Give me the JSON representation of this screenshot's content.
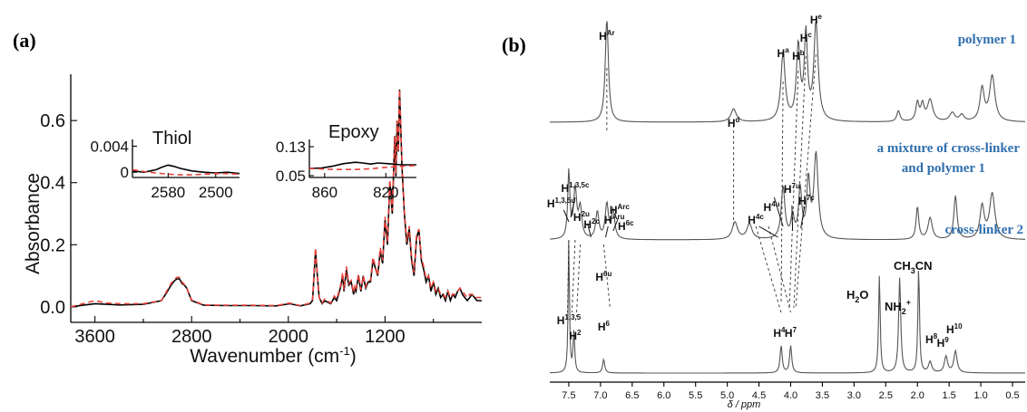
{
  "panels": [
    {
      "letter": "(a)"
    },
    {
      "letter": "(b)"
    }
  ],
  "chart_data": [
    {
      "type": "line",
      "xlabel": "Wavenumber (cm",
      "xlabel_sup": "-1",
      "xlabel_end": ")",
      "ylabel": "Absorbance",
      "xlim": [
        3800,
        400
      ],
      "ylim": [
        -0.05,
        0.72
      ],
      "x_ticks": [
        3600,
        2800,
        2000,
        1200
      ],
      "x_tick_labels": [
        "3600",
        "2800",
        "2000",
        "1200"
      ],
      "y_ticks": [
        0.0,
        0.2,
        0.4,
        0.6
      ],
      "y_tick_labels": [
        "0.0",
        "0.2",
        "0.4",
        "0.6"
      ],
      "series": [
        {
          "color": "#000000",
          "style": "solid",
          "x": [
            3800,
            3700,
            3600,
            3500,
            3400,
            3200,
            3050,
            3000,
            2970,
            2940,
            2920,
            2900,
            2880,
            2860,
            2840,
            2800,
            2700,
            2500,
            2300,
            2100,
            1990,
            1900,
            1820,
            1800,
            1775,
            1760,
            1745,
            1720,
            1700,
            1650,
            1620,
            1600,
            1570,
            1550,
            1540,
            1520,
            1500,
            1480,
            1460,
            1450,
            1440,
            1420,
            1400,
            1380,
            1360,
            1340,
            1320,
            1300,
            1260,
            1240,
            1220,
            1200,
            1180,
            1160,
            1140,
            1120,
            1110,
            1100,
            1090,
            1080,
            1060,
            1040,
            1020,
            1000,
            980,
            960,
            940,
            920,
            900,
            880,
            860,
            840,
            820,
            800,
            780,
            760,
            740,
            720,
            700,
            680,
            660,
            640,
            620,
            600,
            580,
            560,
            540,
            520,
            500,
            480,
            460,
            440,
            420,
            400
          ],
          "y": [
            0.0,
            0.005,
            0.01,
            0.008,
            0.006,
            0.008,
            0.02,
            0.05,
            0.07,
            0.085,
            0.09,
            0.09,
            0.075,
            0.07,
            0.06,
            0.02,
            0.005,
            0.004,
            0.004,
            0.003,
            0.01,
            0.003,
            0.01,
            0.02,
            0.18,
            0.1,
            0.03,
            0.01,
            0.02,
            0.01,
            0.03,
            0.02,
            0.06,
            0.1,
            0.05,
            0.12,
            0.07,
            0.08,
            0.04,
            0.06,
            0.05,
            0.1,
            0.05,
            0.1,
            0.06,
            0.08,
            0.08,
            0.15,
            0.1,
            0.18,
            0.14,
            0.28,
            0.2,
            0.4,
            0.3,
            0.55,
            0.42,
            0.6,
            0.5,
            0.7,
            0.45,
            0.3,
            0.2,
            0.25,
            0.15,
            0.1,
            0.22,
            0.25,
            0.15,
            0.12,
            0.08,
            0.1,
            0.05,
            0.08,
            0.04,
            0.06,
            0.03,
            0.04,
            0.02,
            0.05,
            0.02,
            0.04,
            0.03,
            0.05,
            0.06,
            0.04,
            0.03,
            0.02,
            0.03,
            0.04,
            0.03,
            0.02,
            0.02,
            0.02
          ]
        },
        {
          "color": "#e8413a",
          "style": "dashed",
          "x": [
            3800,
            3700,
            3600,
            3500,
            3400,
            3200,
            3050,
            3000,
            2970,
            2940,
            2920,
            2900,
            2880,
            2860,
            2840,
            2800,
            2700,
            2500,
            2300,
            2100,
            1990,
            1900,
            1820,
            1800,
            1775,
            1760,
            1745,
            1720,
            1700,
            1650,
            1620,
            1600,
            1570,
            1550,
            1540,
            1520,
            1500,
            1480,
            1460,
            1450,
            1440,
            1420,
            1400,
            1380,
            1360,
            1340,
            1320,
            1300,
            1260,
            1240,
            1220,
            1200,
            1180,
            1160,
            1140,
            1120,
            1110,
            1100,
            1090,
            1080,
            1060,
            1040,
            1020,
            1000,
            980,
            960,
            940,
            920,
            900,
            880,
            860,
            840,
            820,
            800,
            780,
            760,
            740,
            720,
            700,
            680,
            660,
            640,
            620,
            600,
            580,
            560,
            540,
            520,
            500,
            480,
            460,
            440,
            420,
            400
          ],
          "y": [
            0.0,
            0.01,
            0.02,
            0.012,
            0.01,
            0.01,
            0.02,
            0.055,
            0.075,
            0.09,
            0.095,
            0.095,
            0.08,
            0.072,
            0.06,
            0.022,
            0.006,
            0.005,
            0.005,
            0.004,
            0.012,
            0.004,
            0.012,
            0.025,
            0.19,
            0.1,
            0.03,
            0.012,
            0.025,
            0.012,
            0.035,
            0.025,
            0.065,
            0.11,
            0.055,
            0.13,
            0.075,
            0.085,
            0.045,
            0.065,
            0.055,
            0.105,
            0.055,
            0.1,
            0.065,
            0.085,
            0.085,
            0.16,
            0.1,
            0.19,
            0.15,
            0.29,
            0.21,
            0.41,
            0.31,
            0.55,
            0.43,
            0.6,
            0.5,
            0.7,
            0.46,
            0.31,
            0.21,
            0.26,
            0.16,
            0.11,
            0.23,
            0.25,
            0.16,
            0.13,
            0.09,
            0.1,
            0.06,
            0.08,
            0.05,
            0.06,
            0.04,
            0.04,
            0.03,
            0.05,
            0.03,
            0.04,
            0.04,
            0.05,
            0.06,
            0.05,
            0.04,
            0.03,
            0.04,
            0.04,
            0.03,
            0.03,
            0.03,
            0.03
          ]
        }
      ],
      "insets": [
        {
          "title": "Thiol",
          "xlim": [
            2640,
            2460
          ],
          "ylim": [
            -0.0008,
            0.0042
          ],
          "x_ticks": [
            2580,
            2500
          ],
          "x_tick_labels": [
            "2580",
            "2500"
          ],
          "y_ticks": [
            0,
            0.004
          ],
          "y_tick_labels": [
            "0",
            "0.004"
          ],
          "black": {
            "x": [
              2640,
              2620,
              2600,
              2590,
              2580,
              2570,
              2560,
              2540,
              2520,
              2500,
              2480,
              2460
            ],
            "y": [
              0.0002,
              0.0,
              0.0004,
              0.0008,
              0.0011,
              0.0009,
              0.0006,
              0.0002,
              0.0,
              -0.0001,
              0.0,
              -0.0002
            ]
          },
          "red": {
            "x": [
              2640,
              2620,
              2600,
              2580,
              2560,
              2540,
              2520,
              2500,
              2480,
              2460
            ],
            "y": [
              0.0004,
              0.0001,
              -0.0001,
              -0.0003,
              -0.0004,
              -0.0004,
              -0.0003,
              -0.0002,
              -0.0002,
              -0.0003
            ]
          }
        },
        {
          "title": "Epoxy",
          "xlim": [
            870,
            800
          ],
          "ylim": [
            0.045,
            0.135
          ],
          "x_ticks": [
            860,
            820
          ],
          "x_tick_labels": [
            "860",
            "820"
          ],
          "y_ticks": [
            0.05,
            0.13
          ],
          "y_tick_labels": [
            "0.05",
            "0.13"
          ],
          "black": {
            "x": [
              870,
              862,
              855,
              848,
              840,
              835,
              830,
              825,
              818,
              810,
              800
            ],
            "y": [
              0.07,
              0.071,
              0.076,
              0.083,
              0.087,
              0.085,
              0.082,
              0.085,
              0.083,
              0.08,
              0.08
            ]
          },
          "red": {
            "x": [
              870,
              860,
              850,
              840,
              830,
              820,
              810,
              800
            ],
            "y": [
              0.07,
              0.068,
              0.067,
              0.067,
              0.069,
              0.073,
              0.076,
              0.078
            ]
          }
        }
      ]
    },
    {
      "type": "line",
      "xlabel": "δ / ppm",
      "xlim": [
        7.8,
        0.3
      ],
      "x_ticks": [
        7.5,
        7.0,
        6.5,
        6.0,
        5.5,
        5.0,
        4.5,
        4.0,
        3.5,
        3.0,
        2.5,
        2.0,
        1.5,
        1.0,
        0.5
      ],
      "x_tick_labels": [
        "7.5",
        "7.0",
        "6.5",
        "6.0",
        "5.5",
        "5.0",
        "4.5",
        "4.0",
        "3.5",
        "3.0",
        "2.5",
        "2.0",
        "1.5",
        "1.0",
        "0.5"
      ],
      "series": [
        {
          "name": "polymer 1",
          "peaks": [
            [
              6.9,
              0.95,
              0.03
            ],
            [
              4.9,
              0.12,
              0.05
            ],
            [
              4.12,
              0.62,
              0.04
            ],
            [
              3.88,
              0.68,
              0.035
            ],
            [
              3.76,
              0.78,
              0.03
            ],
            [
              3.6,
              0.9,
              0.04
            ],
            [
              2.3,
              0.1,
              0.03
            ],
            [
              2.0,
              0.17,
              0.03
            ],
            [
              1.92,
              0.15,
              0.03
            ],
            [
              1.8,
              0.2,
              0.05
            ],
            [
              1.45,
              0.08,
              0.05
            ],
            [
              1.3,
              0.06,
              0.04
            ],
            [
              0.98,
              0.3,
              0.04
            ],
            [
              0.82,
              0.42,
              0.05
            ]
          ]
        },
        {
          "name": "a mixture of cross-linker",
          "name_line2": "and polymer 1",
          "peaks": [
            [
              7.5,
              0.62,
              0.02
            ],
            [
              7.4,
              0.45,
              0.03
            ],
            [
              7.32,
              0.28,
              0.03
            ],
            [
              7.05,
              0.25,
              0.03
            ],
            [
              6.9,
              0.32,
              0.03
            ],
            [
              6.8,
              0.26,
              0.03
            ],
            [
              4.88,
              0.16,
              0.05
            ],
            [
              4.65,
              0.14,
              0.05
            ],
            [
              4.12,
              0.48,
              0.035
            ],
            [
              3.97,
              0.2,
              0.03
            ],
            [
              3.85,
              0.45,
              0.03
            ],
            [
              3.72,
              0.52,
              0.03
            ],
            [
              3.6,
              0.78,
              0.04
            ],
            [
              2.0,
              0.3,
              0.025
            ],
            [
              1.8,
              0.2,
              0.04
            ],
            [
              1.4,
              0.4,
              0.03
            ],
            [
              0.98,
              0.3,
              0.04
            ],
            [
              0.82,
              0.42,
              0.05
            ]
          ]
        },
        {
          "name": "cross-linker 2",
          "peaks": [
            [
              7.5,
              1.0,
              0.012
            ],
            [
              7.42,
              0.3,
              0.015
            ],
            [
              6.95,
              0.1,
              0.02
            ],
            [
              4.15,
              0.2,
              0.02
            ],
            [
              4.0,
              0.2,
              0.02
            ],
            [
              2.6,
              0.72,
              0.015
            ],
            [
              2.28,
              0.7,
              0.02
            ],
            [
              1.98,
              0.78,
              0.015
            ],
            [
              1.8,
              0.08,
              0.03
            ],
            [
              1.55,
              0.12,
              0.03
            ],
            [
              1.4,
              0.16,
              0.03
            ]
          ]
        }
      ],
      "peak_labels": {
        "polymer": [
          [
            "Ar",
            6.9
          ],
          [
            "d",
            4.9
          ],
          [
            "a",
            4.12
          ],
          [
            "b",
            3.88
          ],
          [
            "c",
            3.76
          ],
          [
            "e",
            3.6
          ]
        ],
        "mixture": [
          [
            "1,3,5u",
            7.62
          ],
          [
            "1,3,5c",
            7.45
          ],
          [
            "2u",
            7.3
          ],
          [
            "2c",
            7.14
          ],
          [
            "6u",
            6.95
          ],
          [
            "Aru",
            6.88
          ],
          [
            "Arc",
            6.78
          ],
          [
            "6c",
            6.7
          ],
          [
            "4c",
            4.55
          ],
          [
            "4u",
            4.3
          ],
          [
            "7u",
            3.98
          ],
          [
            "7c",
            3.78
          ]
        ],
        "crosslinker": [
          [
            "1,3,5",
            7.5
          ],
          [
            "2",
            7.38
          ],
          [
            "6",
            6.95
          ],
          [
            "4",
            4.15
          ],
          [
            "7",
            4.0
          ],
          [
            "8",
            1.8
          ],
          [
            "9",
            1.6
          ],
          [
            "10",
            1.42
          ]
        ]
      },
      "crosslinker_labels": {
        "water_base": "H",
        "water_sub": "2",
        "water_end": "O",
        "amine_base": "NH",
        "amine_sub": "2",
        "amine_sup": "+",
        "acetonitrile_base": "CH",
        "acetonitrile_sub": "3",
        "acetonitrile_end": "CN"
      }
    }
  ]
}
